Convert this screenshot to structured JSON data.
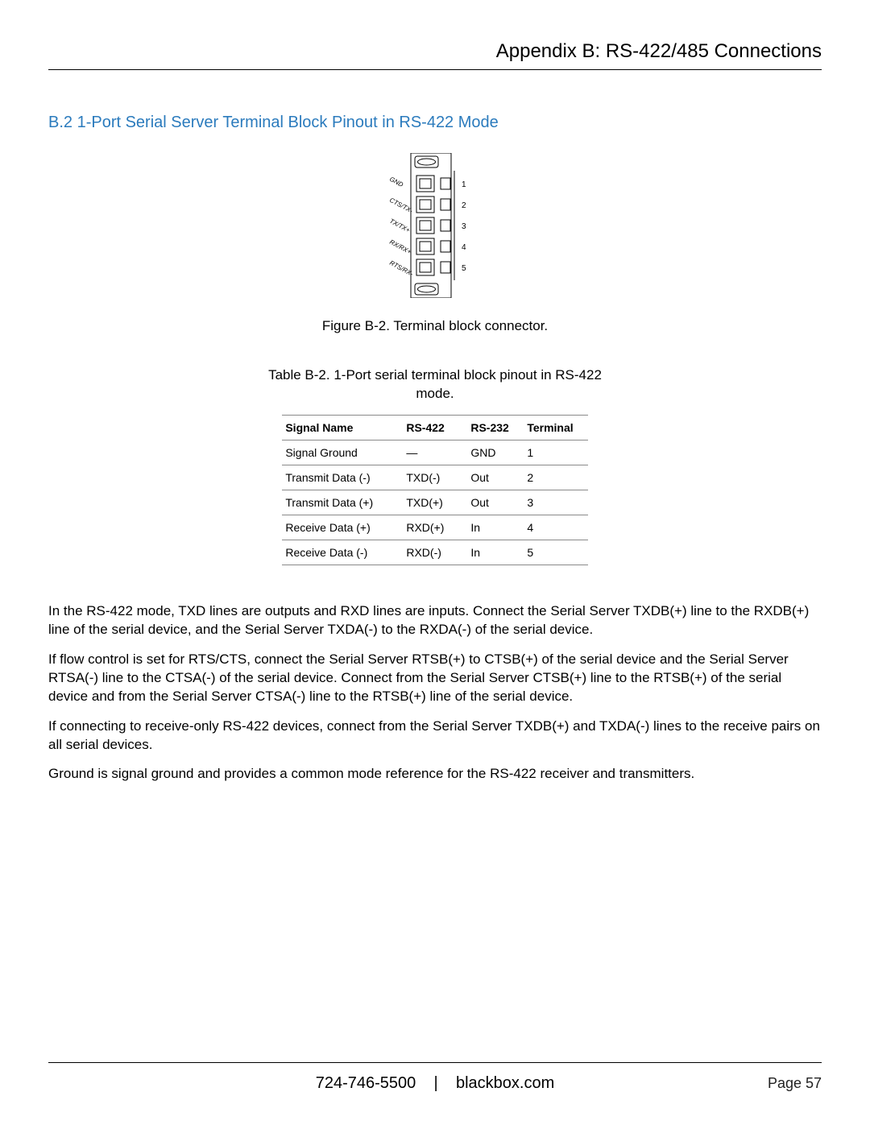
{
  "header": {
    "title": "Appendix B: RS-422/485 Connections"
  },
  "section": {
    "heading": "B.2 1-Port Serial Server Terminal Block Pinout in RS-422 Mode"
  },
  "figure": {
    "caption": "Figure B-2. Terminal block connector.",
    "labels": [
      "GND",
      "CTS/TX-",
      "TX/TX+",
      "RX/RX+",
      "RTS/RX-"
    ],
    "numbers": [
      "1",
      "2",
      "3",
      "4",
      "5"
    ],
    "stroke": "#000000",
    "fill": "#ffffff"
  },
  "table": {
    "caption": "Table B-2. 1-Port serial terminal block pinout in RS-422 mode.",
    "columns": [
      "Signal Name",
      "RS-422",
      "RS-232",
      "Terminal"
    ],
    "rows": [
      [
        "Signal Ground",
        "—",
        "GND",
        "1"
      ],
      [
        "Transmit Data (-)",
        "TXD(-)",
        "Out",
        "2"
      ],
      [
        "Transmit Data (+)",
        "TXD(+)",
        "Out",
        "3"
      ],
      [
        "Receive Data (+)",
        "RXD(+)",
        "In",
        "4"
      ],
      [
        "Receive Data (-)",
        "RXD(-)",
        "In",
        "5"
      ]
    ],
    "border_color": "#8a8a8a",
    "header_fontweight": 600,
    "fontsize": 14
  },
  "paragraphs": [
    "In the RS-422 mode, TXD lines are outputs and RXD lines are inputs. Connect the Serial Server TXDB(+) line to the RXDB(+) line of the serial device, and the Serial Server TXDA(-) to the RXDA(-) of the serial device.",
    "If flow control is set for RTS/CTS, connect the Serial Server RTSB(+) to CTSB(+) of the serial device and the Serial Server RTSA(-) line to the CTSA(-) of the serial device. Connect from the Serial Server CTSB(+) line to the RTSB(+) of the serial device and from the Serial Server CTSA(-) line to the RTSB(+) line of the serial device.",
    "If connecting to receive-only RS-422 devices, connect from the Serial Server TXDB(+) and TXDA(-) lines to the receive pairs on all serial devices.",
    "Ground is signal ground and provides a common mode reference for the RS-422 receiver and transmitters."
  ],
  "footer": {
    "phone": "724-746-5500",
    "sep": "|",
    "site": "blackbox.com",
    "page_label": "Page 57"
  },
  "colors": {
    "heading": "#2b7bbd",
    "text": "#000000",
    "rule": "#000000",
    "background": "#ffffff"
  }
}
